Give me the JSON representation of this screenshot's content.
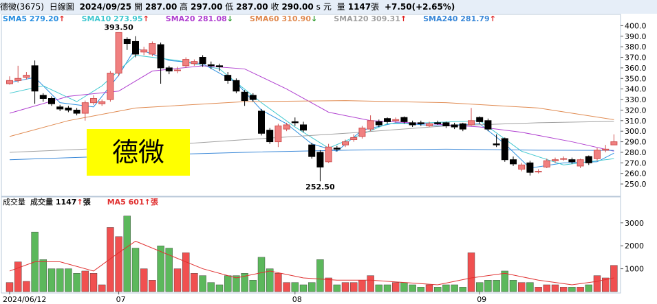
{
  "header": {
    "name": "德微(3675)",
    "period": "日線圖",
    "date": "2024/09/25",
    "open_label": "開",
    "open": "287.00",
    "high_label": "高",
    "high": "297.00",
    "low_label": "低",
    "low": "287.00",
    "close_label": "收",
    "close": "290.00",
    "s": "s",
    "currency": "元",
    "vol_label": "量",
    "vol": "1147",
    "vol_unit": "張",
    "change": "+7.50",
    "change_pct": "(+2.65%)"
  },
  "label_box": "德微",
  "chart_data": [
    {
      "type": "candlestick",
      "open": [
        345,
        348,
        351,
        362,
        334,
        331,
        323,
        322,
        320,
        317,
        327,
        326,
        330,
        355,
        387,
        385,
        375,
        373,
        382,
        360,
        358,
        362,
        364,
        370,
        363,
        362,
        353,
        348,
        337,
        334,
        319,
        301,
        290,
        302,
        309,
        306,
        287,
        280,
        271,
        284,
        287,
        292,
        295,
        302,
        309,
        312,
        310,
        313,
        308,
        308,
        305,
        308,
        308,
        306,
        307,
        306,
        313,
        310,
        288,
        293,
        273,
        264,
        270,
        262,
        266,
        272,
        274,
        273,
        267,
        276,
        274,
        282,
        287
      ],
      "high": [
        352,
        362,
        356,
        367,
        336,
        333,
        325,
        324,
        322,
        329,
        334,
        330,
        357,
        393.5,
        389,
        390,
        380,
        385,
        384,
        362,
        361,
        370,
        368,
        372,
        366,
        364,
        356,
        350,
        339,
        336,
        321,
        303,
        307,
        308,
        313,
        309,
        289,
        282,
        288,
        286,
        292,
        297,
        305,
        315,
        311,
        313,
        313,
        314,
        310,
        310,
        309,
        310,
        309,
        308,
        308,
        322,
        314,
        312,
        297,
        294,
        276,
        270,
        272,
        264,
        274,
        275,
        276,
        275,
        274,
        277,
        284,
        287,
        297
      ],
      "low": [
        344,
        346,
        349,
        326,
        328,
        324,
        319,
        318,
        315,
        310,
        325,
        324,
        328,
        352,
        377,
        370,
        372,
        371,
        345,
        354,
        355,
        360,
        362,
        361,
        359,
        357,
        345,
        336,
        324,
        328,
        296,
        288,
        285,
        300,
        305,
        299,
        274,
        252.5,
        270,
        281,
        285,
        290,
        293,
        300,
        304,
        307,
        308,
        307,
        304,
        305,
        304,
        306,
        303,
        302,
        300,
        305,
        307,
        300,
        285,
        271,
        267,
        262,
        258,
        260,
        265,
        270,
        272,
        269,
        265,
        268,
        272,
        280,
        287
      ],
      "close": [
        348,
        350,
        353,
        338,
        331,
        326,
        321,
        320,
        317,
        327,
        331,
        328,
        355,
        393.5,
        383,
        373,
        377,
        383,
        360,
        357,
        358,
        368,
        366,
        364,
        362,
        361,
        348,
        338,
        329,
        330,
        298,
        290,
        305,
        306,
        308,
        301,
        276,
        266,
        285,
        283,
        290,
        294,
        303,
        310,
        306,
        309,
        311,
        309,
        306,
        307,
        307,
        307,
        305,
        304,
        302,
        310,
        309,
        302,
        287,
        273,
        269,
        268,
        261,
        262,
        272,
        273,
        274,
        271,
        273,
        270,
        282,
        283,
        290
      ],
      "up_color": "#f08080",
      "down_color": "#000000",
      "series": [
        {
          "name": "SMA5",
          "last_label": "279.20",
          "trend": "↑",
          "color": "#2a8fe0",
          "x": [
            0,
            3,
            6,
            10,
            13,
            15,
            19,
            23,
            27,
            30,
            33,
            36,
            39,
            42,
            46,
            51,
            56,
            59,
            62,
            66,
            70,
            72
          ],
          "values": [
            346,
            351,
            327,
            323,
            353,
            379,
            367,
            364,
            346,
            320,
            307,
            288,
            281,
            301,
            308,
            305,
            307,
            288,
            265,
            270,
            271,
            279.2
          ]
        },
        {
          "name": "SMA10",
          "last_label": "273.95",
          "trend": "↑",
          "color": "#40c8d0",
          "x": [
            0,
            4,
            8,
            11,
            15,
            20,
            25,
            30,
            34,
            38,
            41,
            45,
            50,
            56,
            61,
            66,
            72
          ],
          "values": [
            336,
            343,
            328,
            343,
            372,
            367,
            359,
            327,
            304,
            284,
            294,
            307,
            308,
            310,
            281,
            268,
            273.95
          ]
        },
        {
          "name": "SMA20",
          "last_label": "281.08",
          "trend": "↓",
          "color": "#b040d0",
          "x": [
            0,
            7,
            13,
            17,
            23,
            28,
            33,
            38,
            43,
            50,
            56,
            61,
            67,
            72
          ],
          "values": [
            317,
            333,
            338,
            357,
            362,
            359,
            340,
            318,
            310,
            307,
            304,
            299,
            290,
            281.08
          ]
        },
        {
          "name": "SMA60",
          "last_label": "310.90",
          "trend": "↓",
          "color": "#e08a50",
          "x": [
            0,
            7,
            15,
            28,
            40,
            52,
            63,
            72
          ],
          "values": [
            295,
            310,
            322,
            328,
            329,
            327,
            322,
            310.9
          ]
        },
        {
          "name": "SMA120",
          "last_label": "309.31",
          "trend": "↑",
          "color": "#a0a0a0",
          "x": [
            0,
            15,
            28,
            40,
            52,
            63,
            72
          ],
          "values": [
            280,
            285,
            292,
            298,
            305,
            308,
            309.31
          ]
        },
        {
          "name": "SMA240",
          "last_label": "281.79",
          "trend": "↑",
          "color": "#3a88d8",
          "x": [
            0,
            15,
            28,
            40,
            52,
            63,
            72
          ],
          "values": [
            273,
            277,
            280,
            282,
            283,
            282,
            281.79
          ]
        }
      ],
      "annotations": [
        {
          "text": "393.50",
          "index": 13,
          "value": 393.5
        },
        {
          "text": "252.50",
          "index": 37,
          "value": 252.5
        }
      ],
      "ylim": [
        239,
        410
      ],
      "yticks": [
        {
          "value": 400,
          "label": "400.0"
        },
        {
          "value": 390,
          "label": "390.0"
        },
        {
          "value": 380,
          "label": "380.0"
        },
        {
          "value": 370,
          "label": "370.0"
        },
        {
          "value": 360,
          "label": "360.0"
        },
        {
          "value": 350,
          "label": "350.0"
        },
        {
          "value": 340,
          "label": "340.0"
        },
        {
          "value": 330,
          "label": "330.0"
        },
        {
          "value": 320,
          "label": "320.0"
        },
        {
          "value": 310,
          "label": "310.0"
        },
        {
          "value": 300,
          "label": "300.0"
        },
        {
          "value": 290,
          "label": "290.0"
        },
        {
          "value": 280,
          "label": "280.0"
        },
        {
          "value": 270,
          "label": "270.0"
        },
        {
          "value": 260,
          "label": "260.0"
        },
        {
          "value": 250,
          "label": "250.0"
        }
      ]
    },
    {
      "type": "bar",
      "title": "成交量",
      "up_color": "#f05050",
      "down_color": "#5cb85c",
      "series": [
        {
          "name": "成交量",
          "last_label": "1147",
          "trend": "↑",
          "unit": "張",
          "values": [
            400,
            1300,
            450,
            2600,
            1400,
            1000,
            1000,
            1000,
            800,
            900,
            800,
            300,
            2800,
            2400,
            3300,
            1900,
            1000,
            500,
            2000,
            1900,
            1000,
            1700,
            800,
            700,
            400,
            300,
            700,
            700,
            800,
            500,
            1500,
            1000,
            800,
            400,
            400,
            300,
            400,
            1400,
            600,
            300,
            400,
            400,
            500,
            700,
            300,
            300,
            400,
            400,
            300,
            200,
            300,
            200,
            300,
            300,
            200,
            1700,
            400,
            500,
            500,
            900,
            500,
            400,
            400,
            200,
            300,
            300,
            200,
            200,
            200,
            300,
            700,
            600,
            1147
          ]
        },
        {
          "name": "MA5",
          "last_label": "601",
          "trend": "↑",
          "unit": "張",
          "color": "#e03030",
          "x": [
            0,
            3,
            6,
            10,
            13,
            15,
            19,
            23,
            27,
            31,
            35,
            39,
            43,
            47,
            51,
            55,
            59,
            63,
            67,
            70,
            72
          ],
          "values": [
            900,
            1300,
            1300,
            900,
            1700,
            2200,
            1600,
            1000,
            600,
            900,
            600,
            500,
            500,
            400,
            300,
            600,
            800,
            500,
            300,
            450,
            601
          ]
        }
      ],
      "ylim": [
        0,
        4100
      ],
      "yticks": [
        1000,
        2000,
        3000
      ],
      "xticks": [
        {
          "value": 0,
          "label": "2024/06/12"
        },
        {
          "value": 13,
          "label": "07"
        },
        {
          "value": 34,
          "label": "08"
        },
        {
          "value": 56,
          "label": "09"
        }
      ]
    }
  ]
}
